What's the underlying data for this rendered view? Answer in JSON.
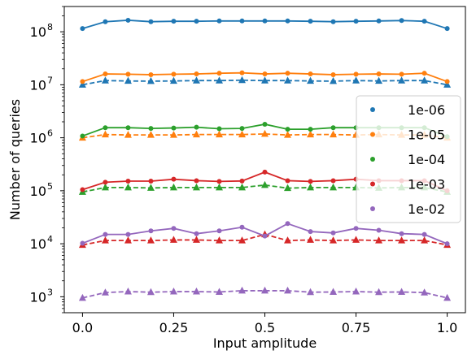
{
  "chart_data": {
    "type": "line",
    "xlabel": "Input amplitude",
    "ylabel": "Number of queries",
    "yscale": "log",
    "xlim": [
      -0.05,
      1.05
    ],
    "ylim": [
      500,
      300000000
    ],
    "xticks": [
      0.0,
      0.25,
      0.5,
      0.75,
      1.0
    ],
    "xtick_labels": [
      "0.0",
      "0.25",
      "0.5",
      "0.75",
      "1.0"
    ],
    "yticks": [
      1000,
      10000,
      100000,
      1000000,
      10000000,
      100000000
    ],
    "ytick_labels": [
      "10^3",
      "10^4",
      "10^5",
      "10^6",
      "10^7",
      "10^8"
    ],
    "legend_position": "center-right",
    "x": [
      0.0,
      0.0625,
      0.125,
      0.1875,
      0.25,
      0.3125,
      0.375,
      0.4375,
      0.5,
      0.5625,
      0.625,
      0.6875,
      0.75,
      0.8125,
      0.875,
      0.9375,
      1.0
    ],
    "series": [
      {
        "name": "1e-06",
        "color": "#1f77b4",
        "solid": [
          115000000,
          155000000,
          165000000,
          155000000,
          158000000,
          158000000,
          160000000,
          160000000,
          160000000,
          160000000,
          158000000,
          155000000,
          158000000,
          160000000,
          163000000,
          158000000,
          115000000
        ],
        "dashed": [
          10000000,
          12000000,
          11800000,
          11700000,
          11800000,
          12000000,
          12000000,
          12200000,
          12000000,
          12000000,
          11800000,
          11700000,
          12000000,
          11800000,
          12000000,
          12000000,
          10000000
        ]
      },
      {
        "name": "1e-05",
        "color": "#ff7f0e",
        "solid": [
          11500000,
          16000000,
          15800000,
          15500000,
          15800000,
          16000000,
          16500000,
          16800000,
          16000000,
          16500000,
          16000000,
          15500000,
          15800000,
          16000000,
          15800000,
          16500000,
          11500000
        ],
        "dashed": [
          1000000,
          1150000,
          1130000,
          1130000,
          1130000,
          1150000,
          1150000,
          1150000,
          1180000,
          1130000,
          1150000,
          1150000,
          1130000,
          1150000,
          1130000,
          1130000,
          1000000
        ]
      },
      {
        "name": "1e-04",
        "color": "#2ca02c",
        "solid": [
          1080000,
          1550000,
          1550000,
          1500000,
          1530000,
          1580000,
          1480000,
          1500000,
          1800000,
          1450000,
          1450000,
          1550000,
          1550000,
          1550000,
          1550000,
          1550000,
          1050000
        ],
        "dashed": [
          95000,
          115000,
          115000,
          113000,
          115000,
          115000,
          115000,
          115000,
          128000,
          112000,
          115000,
          115000,
          115000,
          113000,
          115000,
          115000,
          95000
        ]
      },
      {
        "name": "1e-03",
        "color": "#d62728",
        "solid": [
          105000,
          145000,
          152000,
          152000,
          165000,
          155000,
          150000,
          153000,
          225000,
          155000,
          150000,
          155000,
          165000,
          155000,
          155000,
          155000,
          100000
        ],
        "dashed": [
          9500,
          11500,
          11500,
          11500,
          11800,
          11800,
          11500,
          11500,
          15000,
          11500,
          11800,
          11500,
          11800,
          11500,
          11500,
          11500,
          9500
        ]
      },
      {
        "name": "1e-02",
        "color": "#9467bd",
        "solid": [
          10200,
          15000,
          15000,
          17500,
          19500,
          15500,
          17500,
          20500,
          14000,
          24000,
          17000,
          16000,
          19500,
          18000,
          15500,
          15000,
          10000
        ],
        "dashed": [
          950,
          1200,
          1250,
          1220,
          1250,
          1250,
          1230,
          1300,
          1300,
          1300,
          1220,
          1230,
          1250,
          1220,
          1230,
          1200,
          950
        ]
      }
    ]
  }
}
